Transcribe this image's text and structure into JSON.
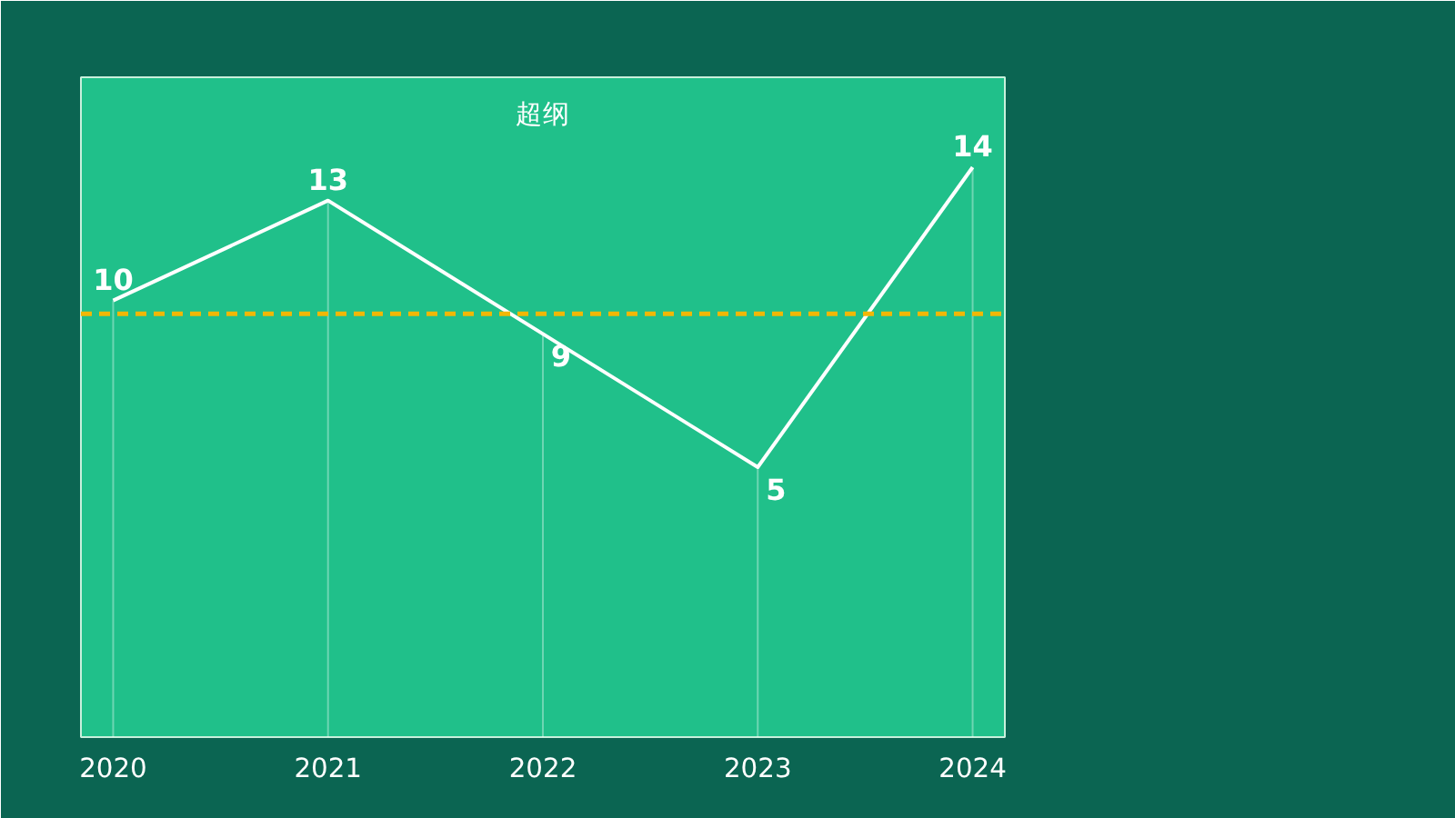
{
  "chart_data": {
    "type": "line",
    "title": "超纲",
    "categories": [
      "2020",
      "2021",
      "2022",
      "2023",
      "2024"
    ],
    "series": [
      {
        "color": "#ffffff",
        "values": [
          10,
          13,
          9,
          5,
          14
        ]
      }
    ],
    "data_labels": true,
    "line_style": "solid",
    "grid": "x",
    "ref_lines": [
      {
        "axis": "y",
        "value": 9.6,
        "color": "#f2b705",
        "line_style": "dashed"
      }
    ]
  }
}
